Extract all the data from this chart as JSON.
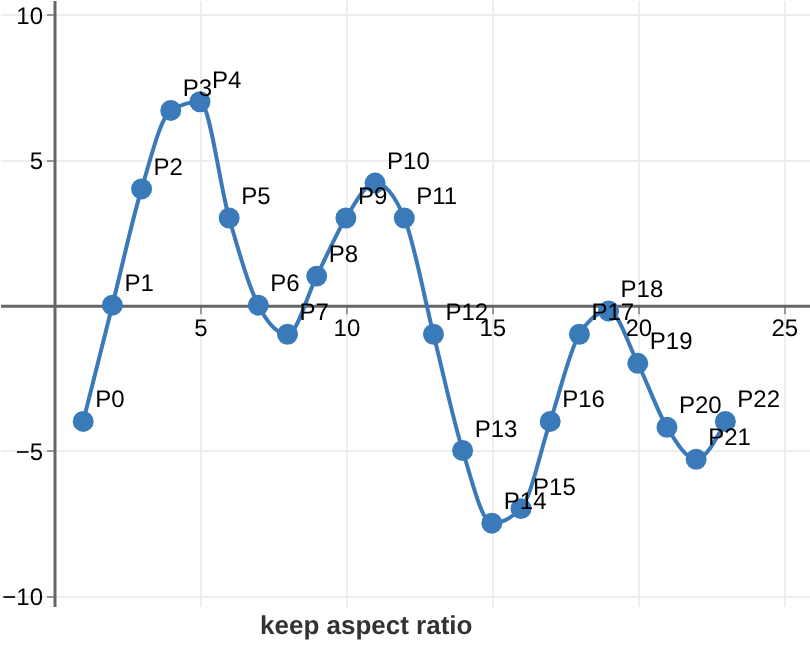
{
  "chart_data": {
    "type": "line",
    "x": [
      1,
      2,
      3,
      4,
      5,
      6,
      7,
      8,
      9,
      10,
      11,
      12,
      13,
      14,
      15,
      16,
      17,
      18,
      19,
      20,
      21,
      22,
      23
    ],
    "series": [
      {
        "color": "#3a7ab8",
        "values": [
          -4,
          0,
          4,
          6.7,
          7,
          3,
          0,
          -1,
          1,
          3,
          4.2,
          3,
          -1,
          -5,
          -7.5,
          -7,
          -4,
          -1,
          -0.2,
          -2,
          -4.2,
          -5.3,
          -4
        ]
      }
    ],
    "xlim": [
      -1.85,
      25.9
    ],
    "ylim": [
      -10.35,
      10.5
    ],
    "xticks": [
      5,
      10,
      15,
      20,
      25
    ],
    "yticks": [
      -10,
      -5,
      5,
      10
    ],
    "grid": true,
    "marker": "circle",
    "line_style": "solid",
    "annotations": [
      {
        "text": "P0",
        "x": 1,
        "y": -4
      },
      {
        "text": "P1",
        "x": 2,
        "y": 0
      },
      {
        "text": "P2",
        "x": 3,
        "y": 4
      },
      {
        "text": "P3",
        "x": 4,
        "y": 6.7
      },
      {
        "text": "P4",
        "x": 5,
        "y": 7
      },
      {
        "text": "P5",
        "x": 6,
        "y": 3
      },
      {
        "text": "P6",
        "x": 7,
        "y": 0
      },
      {
        "text": "P7",
        "x": 8,
        "y": -1
      },
      {
        "text": "P8",
        "x": 9,
        "y": 1
      },
      {
        "text": "P9",
        "x": 10,
        "y": 3
      },
      {
        "text": "P10",
        "x": 11,
        "y": 4.2
      },
      {
        "text": "P11",
        "x": 12,
        "y": 3
      },
      {
        "text": "P12",
        "x": 13,
        "y": -1
      },
      {
        "text": "P13",
        "x": 14,
        "y": -5
      },
      {
        "text": "P14",
        "x": 15,
        "y": -7.5
      },
      {
        "text": "P15",
        "x": 16,
        "y": -7
      },
      {
        "text": "P16",
        "x": 17,
        "y": -4
      },
      {
        "text": "P17",
        "x": 18,
        "y": -1
      },
      {
        "text": "P18",
        "x": 19,
        "y": -0.2
      },
      {
        "text": "P19",
        "x": 20,
        "y": -2
      },
      {
        "text": "P20",
        "x": 21,
        "y": -4.2
      },
      {
        "text": "P21",
        "x": 22,
        "y": -5.3
      },
      {
        "text": "P22",
        "x": 23,
        "y": -4
      },
      "keep aspect ratio"
    ]
  }
}
